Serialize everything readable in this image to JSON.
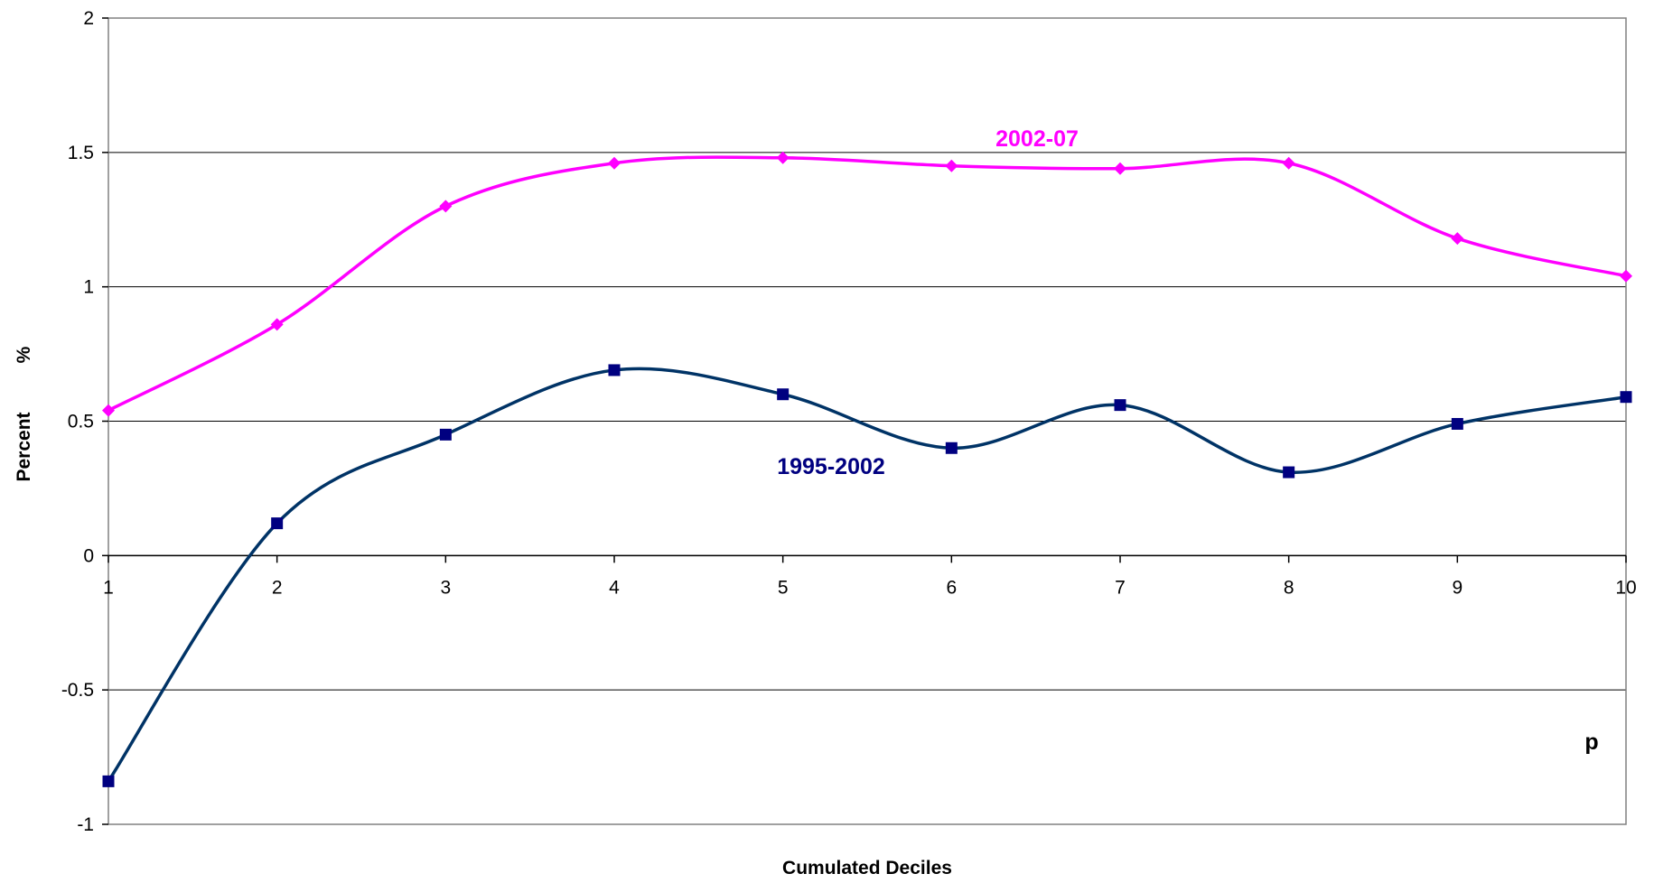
{
  "chart_data": {
    "type": "line",
    "title": "",
    "xlabel": "Cumulated Deciles",
    "ylabel": "Percent",
    "ylabel_unit": "%",
    "x_annotation": "p",
    "categories": [
      "1",
      "2",
      "3",
      "4",
      "5",
      "6",
      "7",
      "8",
      "9",
      "10"
    ],
    "x": [
      1,
      2,
      3,
      4,
      5,
      6,
      7,
      8,
      9,
      10
    ],
    "ylim": [
      -1,
      2
    ],
    "yticks": [
      -1,
      -0.5,
      0,
      0.5,
      1,
      1.5,
      2
    ],
    "ytick_labels": [
      "-1",
      "-0.5",
      "0",
      "0.5",
      "1",
      "1.5",
      "2"
    ],
    "grid": "horizontal",
    "smooth": true,
    "series": [
      {
        "name": "2002-07",
        "color": "#FF00FF",
        "marker": "diamond",
        "values": [
          0.54,
          0.86,
          1.3,
          1.46,
          1.48,
          1.45,
          1.44,
          1.46,
          1.18,
          1.04
        ]
      },
      {
        "name": "1995-2002",
        "color": "#003366",
        "marker_color": "#000080",
        "label_color": "#000080",
        "marker": "square",
        "values": [
          -0.84,
          0.12,
          0.45,
          0.69,
          0.6,
          0.4,
          0.56,
          0.31,
          0.49,
          0.59
        ]
      }
    ]
  }
}
